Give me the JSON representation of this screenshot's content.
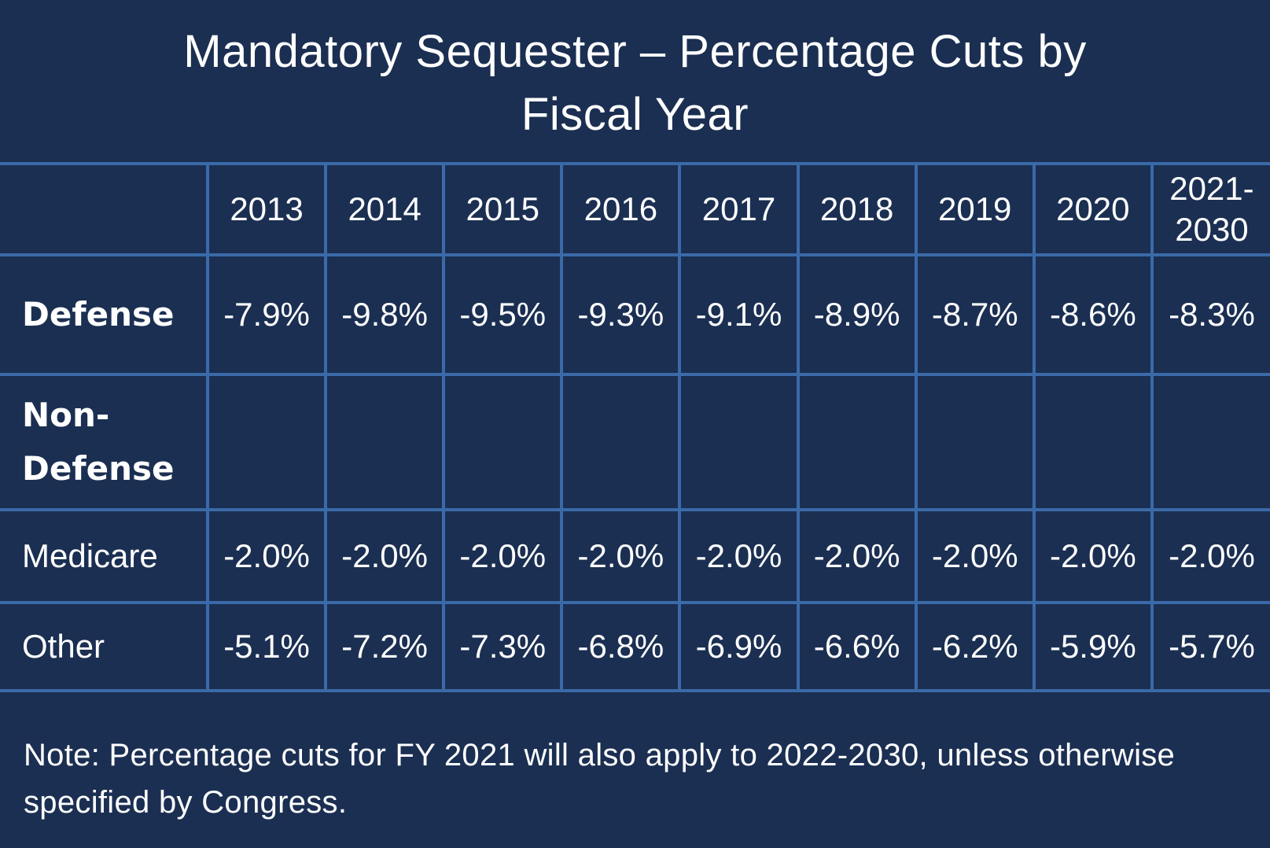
{
  "title": {
    "line1": "Mandatory Sequester – Percentage Cuts by",
    "line2": "Fiscal Year"
  },
  "colors": {
    "background": "#1b2f52",
    "grid": "#3a6aa8",
    "text": "#ffffff"
  },
  "chart_data": {
    "type": "table",
    "title": "Mandatory Sequester – Percentage Cuts by Fiscal Year",
    "columns": [
      "2013",
      "2014",
      "2015",
      "2016",
      "2017",
      "2018",
      "2019",
      "2020",
      "2021-2030"
    ],
    "last_column_lines": [
      "2021-",
      "2030"
    ],
    "rows": [
      {
        "label": "Defense",
        "label_style": "bold",
        "values": [
          "-7.9%",
          "-9.8%",
          "-9.5%",
          "-9.3%",
          "-9.1%",
          "-8.9%",
          "-8.7%",
          "-8.6%",
          "-8.3%"
        ]
      },
      {
        "label": "Non-Defense",
        "label_lines": [
          "Non-",
          "Defense"
        ],
        "label_style": "bold",
        "values": [
          "",
          "",
          "",
          "",
          "",
          "",
          "",
          "",
          ""
        ]
      },
      {
        "label": "Medicare",
        "label_style": "regular",
        "values": [
          "-2.0%",
          "-2.0%",
          "-2.0%",
          "-2.0%",
          "-2.0%",
          "-2.0%",
          "-2.0%",
          "-2.0%",
          "-2.0%"
        ]
      },
      {
        "label": "Other",
        "label_style": "regular",
        "values": [
          "-5.1%",
          "-7.2%",
          "-7.3%",
          "-6.8%",
          "-6.9%",
          "-6.6%",
          "-6.2%",
          "-5.9%",
          "-5.7%"
        ]
      }
    ]
  },
  "note": "Note: Percentage cuts for FY 2021 will also apply to 2022-2030, unless otherwise specified by Congress."
}
